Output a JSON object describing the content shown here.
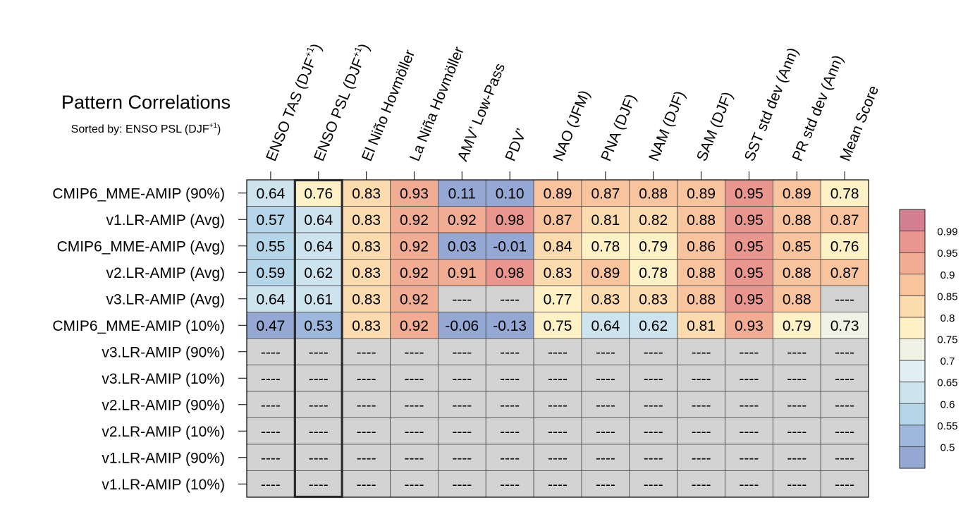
{
  "chart_data": {
    "type": "heatmap",
    "title": "Pattern Correlations",
    "subtitle_prefix": "Sorted by: ENSO PSL (DJF",
    "subtitle_sup": "+1",
    "subtitle_suffix": ")",
    "sorted_column_index": 1,
    "columns": [
      {
        "label": "ENSO TAS (DJF",
        "sup": "+1",
        "tail": ")"
      },
      {
        "label": "ENSO PSL (DJF",
        "sup": "+1",
        "tail": ")"
      },
      {
        "label": "El Niño Hovmöller"
      },
      {
        "label": "La Niña Hovmöller"
      },
      {
        "label": "AMV’ Low-Pass"
      },
      {
        "label": "PDV’"
      },
      {
        "label": "NAO (JFM)"
      },
      {
        "label": "PNA (DJF)"
      },
      {
        "label": "NAM (DJF)"
      },
      {
        "label": "SAM (DJF)"
      },
      {
        "label": "SST std dev (Ann)"
      },
      {
        "label": "PR std dev (Ann)"
      },
      {
        "label": "Mean Score"
      }
    ],
    "rows": [
      {
        "label": "CMIP6_MME-AMIP (90%)",
        "values": [
          "0.64",
          "0.76",
          "0.83",
          "0.93",
          "0.11",
          "0.10",
          "0.89",
          "0.87",
          "0.88",
          "0.89",
          "0.95",
          "0.89",
          "0.78"
        ]
      },
      {
        "label": "v1.LR-AMIP (Avg)",
        "values": [
          "0.57",
          "0.64",
          "0.83",
          "0.92",
          "0.92",
          "0.98",
          "0.87",
          "0.81",
          "0.82",
          "0.88",
          "0.95",
          "0.88",
          "0.87"
        ]
      },
      {
        "label": "CMIP6_MME-AMIP (Avg)",
        "values": [
          "0.55",
          "0.64",
          "0.83",
          "0.92",
          "0.03",
          "-0.01",
          "0.84",
          "0.78",
          "0.79",
          "0.86",
          "0.95",
          "0.85",
          "0.76"
        ]
      },
      {
        "label": "v2.LR-AMIP (Avg)",
        "values": [
          "0.59",
          "0.62",
          "0.83",
          "0.92",
          "0.91",
          "0.98",
          "0.83",
          "0.89",
          "0.78",
          "0.88",
          "0.95",
          "0.88",
          "0.87"
        ]
      },
      {
        "label": "v3.LR-AMIP (Avg)",
        "values": [
          "0.64",
          "0.61",
          "0.83",
          "0.92",
          "----",
          "----",
          "0.77",
          "0.83",
          "0.83",
          "0.88",
          "0.95",
          "0.88",
          "----"
        ]
      },
      {
        "label": "CMIP6_MME-AMIP (10%)",
        "values": [
          "0.47",
          "0.53",
          "0.83",
          "0.92",
          "-0.06",
          "-0.13",
          "0.75",
          "0.64",
          "0.62",
          "0.81",
          "0.93",
          "0.79",
          "0.73"
        ]
      },
      {
        "label": "v3.LR-AMIP (90%)",
        "values": [
          "----",
          "----",
          "----",
          "----",
          "----",
          "----",
          "----",
          "----",
          "----",
          "----",
          "----",
          "----",
          "----"
        ]
      },
      {
        "label": "v3.LR-AMIP (10%)",
        "values": [
          "----",
          "----",
          "----",
          "----",
          "----",
          "----",
          "----",
          "----",
          "----",
          "----",
          "----",
          "----",
          "----"
        ]
      },
      {
        "label": "v2.LR-AMIP (90%)",
        "values": [
          "----",
          "----",
          "----",
          "----",
          "----",
          "----",
          "----",
          "----",
          "----",
          "----",
          "----",
          "----",
          "----"
        ]
      },
      {
        "label": "v2.LR-AMIP (10%)",
        "values": [
          "----",
          "----",
          "----",
          "----",
          "----",
          "----",
          "----",
          "----",
          "----",
          "----",
          "----",
          "----",
          "----"
        ]
      },
      {
        "label": "v1.LR-AMIP (90%)",
        "values": [
          "----",
          "----",
          "----",
          "----",
          "----",
          "----",
          "----",
          "----",
          "----",
          "----",
          "----",
          "----",
          "----"
        ]
      },
      {
        "label": "v1.LR-AMIP (10%)",
        "values": [
          "----",
          "----",
          "----",
          "----",
          "----",
          "----",
          "----",
          "----",
          "----",
          "----",
          "----",
          "----",
          "----"
        ]
      }
    ],
    "missing_color": "#d3d3d3",
    "colorbar": {
      "tick_labels": [
        "0.99",
        "0.95",
        "0.9",
        "0.85",
        "0.8",
        "0.75",
        "0.7",
        "0.65",
        "0.6",
        "0.55",
        "0.5"
      ],
      "colors": [
        "#d37f8f",
        "#e8968e",
        "#f0ad93",
        "#f8c49d",
        "#fcdcae",
        "#fff1c6",
        "#f1f2e6",
        "#e2f0f6",
        "#cde4ef",
        "#b5d5e8",
        "#9eb7dc",
        "#94a8d3"
      ]
    }
  }
}
